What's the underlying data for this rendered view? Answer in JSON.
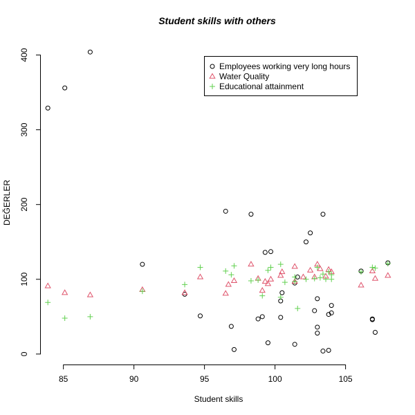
{
  "chart_data": {
    "type": "scatter",
    "title": "Student skills with others",
    "xlabel": "Student skills",
    "ylabel": "DEĞERLER",
    "xlim": [
      83.4,
      108.5
    ],
    "ylim": [
      -14,
      419
    ],
    "x_ticks": [
      "85",
      "90",
      "95",
      "100",
      "105"
    ],
    "y_ticks": [
      "0",
      "100",
      "200",
      "300",
      "400"
    ],
    "grid": false,
    "legend_position": "top-right",
    "series": [
      {
        "name": "Employees working very long hours",
        "color": "#000000",
        "marker": "circle",
        "points": [
          [
            83.9,
            329
          ],
          [
            85.1,
            356
          ],
          [
            86.9,
            404
          ],
          [
            90.6,
            120
          ],
          [
            93.6,
            80
          ],
          [
            94.7,
            51
          ],
          [
            96.5,
            191
          ],
          [
            96.9,
            37
          ],
          [
            97.1,
            6
          ],
          [
            98.3,
            187
          ],
          [
            98.8,
            47
          ],
          [
            99.1,
            50
          ],
          [
            99.3,
            136
          ],
          [
            99.5,
            15
          ],
          [
            99.7,
            137
          ],
          [
            100.4,
            71
          ],
          [
            100.4,
            49
          ],
          [
            100.5,
            82
          ],
          [
            101.4,
            13
          ],
          [
            101.4,
            95
          ],
          [
            101.6,
            103
          ],
          [
            102.2,
            150
          ],
          [
            102.5,
            162
          ],
          [
            102.8,
            58
          ],
          [
            103.0,
            36
          ],
          [
            103.0,
            74
          ],
          [
            103.0,
            28
          ],
          [
            103.4,
            4
          ],
          [
            103.4,
            187
          ],
          [
            103.8,
            53
          ],
          [
            103.8,
            5
          ],
          [
            104.0,
            65
          ],
          [
            104.0,
            55
          ],
          [
            106.1,
            111
          ],
          [
            106.9,
            46
          ],
          [
            106.9,
            47
          ],
          [
            107.1,
            29
          ],
          [
            108.0,
            122
          ]
        ]
      },
      {
        "name": "Water Quality",
        "color": "#DF536B",
        "marker": "triangle",
        "points": [
          [
            83.9,
            91
          ],
          [
            85.1,
            82
          ],
          [
            86.9,
            79
          ],
          [
            90.6,
            86
          ],
          [
            93.6,
            82
          ],
          [
            94.7,
            103
          ],
          [
            96.5,
            81
          ],
          [
            96.7,
            93
          ],
          [
            97.1,
            98
          ],
          [
            98.3,
            120
          ],
          [
            98.8,
            101
          ],
          [
            99.1,
            85
          ],
          [
            99.3,
            97
          ],
          [
            99.5,
            94
          ],
          [
            99.7,
            100
          ],
          [
            100.4,
            105
          ],
          [
            100.5,
            110
          ],
          [
            101.4,
            117
          ],
          [
            101.4,
            97
          ],
          [
            102.0,
            103
          ],
          [
            102.5,
            112
          ],
          [
            102.8,
            103
          ],
          [
            103.0,
            120
          ],
          [
            103.2,
            114
          ],
          [
            103.6,
            104
          ],
          [
            103.8,
            113
          ],
          [
            104.0,
            110
          ],
          [
            106.1,
            92
          ],
          [
            106.9,
            111
          ],
          [
            107.1,
            101
          ],
          [
            108.0,
            105
          ]
        ]
      },
      {
        "name": "Educational attainment",
        "color": "#61D04F",
        "marker": "plus",
        "points": [
          [
            83.9,
            69
          ],
          [
            85.1,
            48
          ],
          [
            86.9,
            50
          ],
          [
            90.6,
            84
          ],
          [
            93.6,
            93
          ],
          [
            94.7,
            116
          ],
          [
            96.5,
            111
          ],
          [
            96.9,
            106
          ],
          [
            97.1,
            118
          ],
          [
            98.3,
            98
          ],
          [
            98.8,
            99
          ],
          [
            99.1,
            78
          ],
          [
            99.5,
            112
          ],
          [
            99.7,
            116
          ],
          [
            100.4,
            120
          ],
          [
            100.4,
            76
          ],
          [
            100.7,
            96
          ],
          [
            101.4,
            97
          ],
          [
            101.4,
            103
          ],
          [
            101.6,
            61
          ],
          [
            102.2,
            100
          ],
          [
            102.8,
            101
          ],
          [
            103.0,
            116
          ],
          [
            103.2,
            102
          ],
          [
            103.4,
            107
          ],
          [
            103.6,
            100
          ],
          [
            103.8,
            110
          ],
          [
            104.0,
            100
          ],
          [
            104.0,
            106
          ],
          [
            106.1,
            110
          ],
          [
            106.9,
            116
          ],
          [
            107.1,
            115
          ],
          [
            108.0,
            121
          ]
        ]
      }
    ]
  }
}
